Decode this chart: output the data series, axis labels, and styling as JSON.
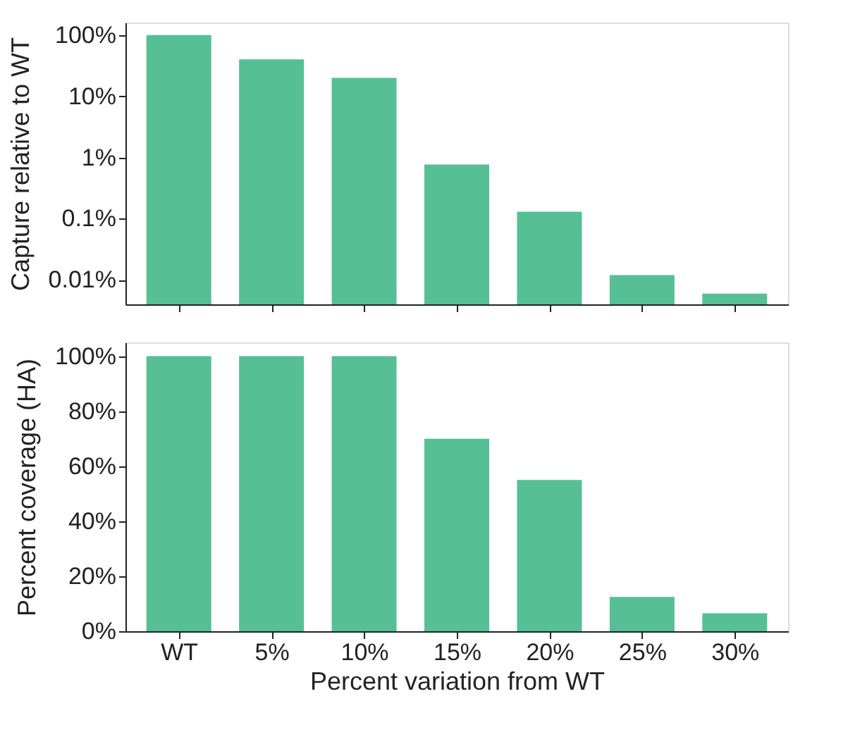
{
  "chart_data": [
    {
      "type": "bar",
      "ylabel": "Capture relative to WT",
      "categories": [
        null,
        null,
        null,
        null,
        null,
        null,
        null
      ],
      "values": [
        100,
        40,
        20,
        0.77,
        0.13,
        0.012,
        0.006
      ],
      "color": "#56bf96",
      "log": "y",
      "ylim": [
        0.004,
        160
      ],
      "yticks": [
        {
          "value": 0.01,
          "label": "0.01%"
        },
        {
          "value": 0.1,
          "label": "0.1%"
        },
        {
          "value": 1,
          "label": "1%"
        },
        {
          "value": 10,
          "label": "10%"
        },
        {
          "value": 100,
          "label": "100%"
        }
      ],
      "tick_labels": "y",
      "grid": false
    },
    {
      "type": "bar",
      "xlabel": "Percent variation from WT",
      "ylabel": "Percent coverage (HA)",
      "categories": [
        "WT",
        "5%",
        "10%",
        "15%",
        "20%",
        "25%",
        "30%"
      ],
      "values": [
        100,
        100,
        100,
        70,
        55,
        12.5,
        6.5
      ],
      "color": "#56bf96",
      "ylim": [
        0,
        105
      ],
      "yticks": [
        {
          "value": 0,
          "label": "0%"
        },
        {
          "value": 20,
          "label": "20%"
        },
        {
          "value": 40,
          "label": "40%"
        },
        {
          "value": 60,
          "label": "60%"
        },
        {
          "value": 80,
          "label": "80%"
        },
        {
          "value": 100,
          "label": "100%"
        }
      ],
      "grid": false
    }
  ]
}
